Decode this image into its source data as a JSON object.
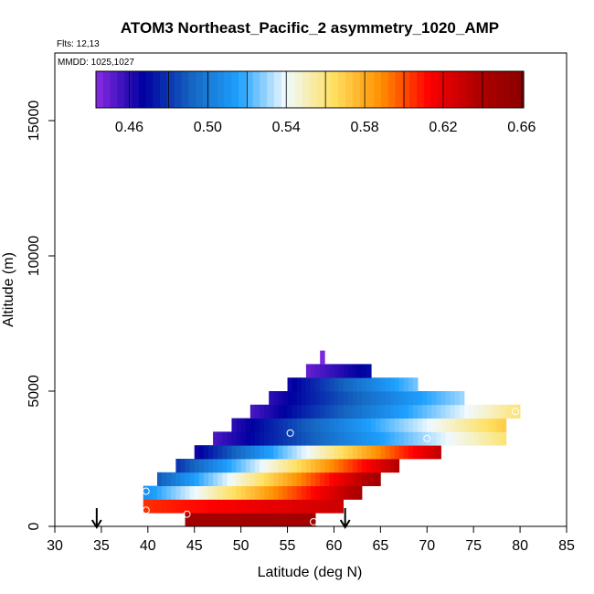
{
  "chart_data": {
    "type": "heatmap",
    "title": "ATOM3 Northeast_Pacific_2 asymmetry_1020_AMP",
    "flights_note": "Flts: 12,13",
    "dates_note": "MMDD: 1025,1027",
    "xlabel": "Latitude (deg N)",
    "ylabel": "Altitude (m)",
    "xlim": [
      30,
      85
    ],
    "ylim": [
      0,
      17500
    ],
    "xticks": [
      30,
      35,
      40,
      45,
      50,
      55,
      60,
      65,
      70,
      75,
      80,
      85
    ],
    "yticks": [
      0,
      5000,
      10000,
      15000
    ],
    "colorbar": {
      "range": [
        0.443,
        0.661
      ],
      "ticks": [
        0.46,
        0.5,
        0.54,
        0.58,
        0.62,
        0.66
      ],
      "tick_labels": [
        "0.46",
        "0.50",
        "0.54",
        "0.58",
        "0.62",
        "0.66"
      ],
      "colors": [
        "#8A2BE2",
        "#0000A0",
        "#1565C0",
        "#1EA0FF",
        "#F0FAFF",
        "#FFE060",
        "#FF9000",
        "#FF0000",
        "#B00000",
        "#8B0000"
      ]
    },
    "rows": [
      {
        "y0": 0,
        "y1": 500,
        "x0": 44,
        "x1": 58,
        "v0": 0.645,
        "v1": 0.645
      },
      {
        "y0": 500,
        "y1": 1000,
        "x0": 39.5,
        "x1": 61,
        "v0": 0.605,
        "v1": 0.628
      },
      {
        "y0": 1000,
        "y1": 1500,
        "x0": 39.5,
        "x1": 63,
        "v0": 0.51,
        "v1": 0.64
      },
      {
        "y0": 1500,
        "y1": 2000,
        "x0": 41,
        "x1": 65,
        "v0": 0.49,
        "v1": 0.645
      },
      {
        "y0": 2000,
        "y1": 2500,
        "x0": 43,
        "x1": 67,
        "v0": 0.48,
        "v1": 0.635
      },
      {
        "y0": 2500,
        "y1": 3000,
        "x0": 45,
        "x1": 71.5,
        "v0": 0.465,
        "v1": 0.63
      },
      {
        "y0": 3000,
        "y1": 3500,
        "x0": 47,
        "x1": 78.5,
        "v0": 0.455,
        "v1": 0.56
      },
      {
        "y0": 3500,
        "y1": 4000,
        "x0": 49,
        "x1": 78.5,
        "v0": 0.46,
        "v1": 0.57
      },
      {
        "y0": 4000,
        "y1": 4500,
        "x0": 51,
        "x1": 80,
        "v0": 0.455,
        "v1": 0.56
      },
      {
        "y0": 4500,
        "y1": 5000,
        "x0": 53,
        "x1": 74,
        "v0": 0.46,
        "v1": 0.53
      },
      {
        "y0": 5000,
        "y1": 5500,
        "x0": 55,
        "x1": 69,
        "v0": 0.465,
        "v1": 0.525
      },
      {
        "y0": 5500,
        "y1": 6000,
        "x0": 57,
        "x1": 64,
        "v0": 0.45,
        "v1": 0.47
      },
      {
        "y0": 6000,
        "y1": 6500,
        "x0": 58.5,
        "x1": 59,
        "v0": 0.445,
        "v1": 0.445
      }
    ],
    "circle_markers": [
      {
        "x": 39.8,
        "y": 600
      },
      {
        "x": 39.8,
        "y": 1300
      },
      {
        "x": 44.2,
        "y": 450
      },
      {
        "x": 55.3,
        "y": 3450
      },
      {
        "x": 57.8,
        "y": 170
      },
      {
        "x": 70.0,
        "y": 3250
      },
      {
        "x": 79.5,
        "y": 4250
      }
    ],
    "arrow_markers": [
      {
        "x": 34.5
      },
      {
        "x": 61.2
      }
    ]
  }
}
